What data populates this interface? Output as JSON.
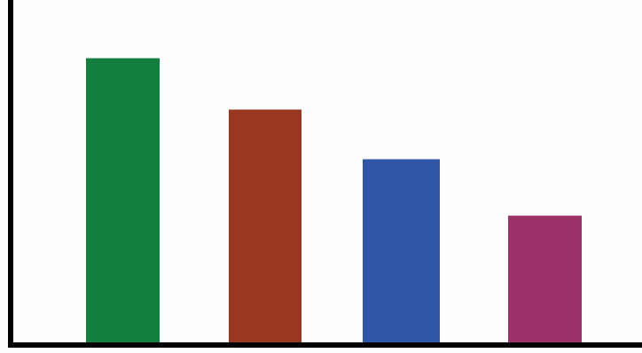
{
  "chart_data": {
    "type": "bar",
    "categories": [
      "",
      "",
      "",
      ""
    ],
    "values": [
      83,
      68,
      53.5,
      37
    ],
    "ylim": [
      0,
      100
    ],
    "colors": [
      "#127f3f",
      "#993720",
      "#2f56a7",
      "#9b3168"
    ],
    "axis_color": "#000000",
    "grid": false,
    "legend": "none",
    "title": "",
    "xlabel": "",
    "ylabel": ""
  }
}
